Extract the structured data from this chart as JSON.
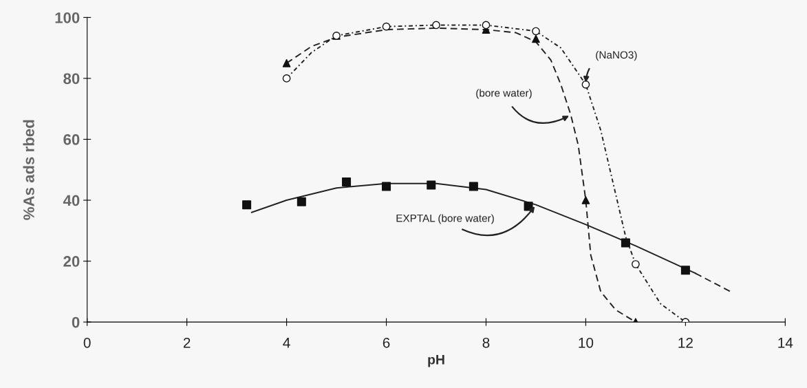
{
  "chart_data": {
    "type": "scatter",
    "xlabel": "pH",
    "ylabel": "%As ads rbed",
    "xlim": [
      0,
      14
    ],
    "ylim": [
      0,
      100
    ],
    "xticks": [
      0,
      2,
      4,
      6,
      8,
      10,
      12,
      14
    ],
    "yticks": [
      0,
      20,
      40,
      60,
      80,
      100
    ],
    "grid": false,
    "legend": false,
    "series": [
      {
        "type": "line",
        "name": "(bore water)",
        "color": "#222222",
        "line_style": "dashed",
        "marker": "none",
        "x": [
          4,
          4.5,
          5,
          6,
          7,
          8,
          8.6,
          9,
          9.3,
          9.5,
          9.7,
          9.85,
          10,
          10.1,
          10.3,
          10.6,
          11
        ],
        "values": [
          85,
          90.5,
          93.5,
          96,
          96.5,
          96,
          95,
          92,
          86,
          78,
          68,
          58,
          40,
          22,
          10,
          4,
          0
        ]
      },
      {
        "type": "line",
        "name": "(NaNO3)",
        "color": "#222222",
        "line_style": "dotted",
        "marker": "none",
        "x": [
          4,
          4.5,
          5,
          6,
          7,
          8,
          9,
          9.5,
          10,
          10.3,
          10.6,
          10.8,
          11,
          11.5,
          12
        ],
        "values": [
          80,
          88.5,
          94,
          97,
          97.5,
          97.5,
          95.5,
          90,
          78,
          63,
          42,
          28,
          19,
          6,
          0
        ]
      },
      {
        "type": "line",
        "name": "EXPTAL (bore water)",
        "color": "#222222",
        "line_style": "solid",
        "marker": "none",
        "x": [
          3.3,
          4,
          5,
          6,
          7,
          8,
          9,
          10,
          11,
          12,
          12.2
        ],
        "values": [
          36,
          40,
          44,
          45.5,
          45.5,
          43.5,
          38.5,
          32,
          25,
          17.5,
          16
        ]
      },
      {
        "type": "line",
        "color": "#222222",
        "line_style": "dashed",
        "marker": "none",
        "x": [
          12.2,
          12.9
        ],
        "values": [
          16,
          10
        ]
      },
      {
        "color": "#111111",
        "marker": "triangle",
        "x": [
          4,
          5,
          6,
          7,
          8,
          9,
          10,
          11
        ],
        "values": [
          85,
          94,
          null,
          null,
          96,
          93,
          40,
          0
        ]
      },
      {
        "color": "#111111",
        "marker": "circle",
        "x": [
          4,
          5,
          6,
          7,
          8,
          9,
          10,
          11,
          12
        ],
        "values": [
          80,
          94,
          97,
          97.5,
          97.5,
          95.5,
          78,
          19,
          0
        ]
      },
      {
        "color": "#111111",
        "marker": "square",
        "x": [
          3.2,
          4.3,
          5.2,
          6,
          6.9,
          7.75,
          8.85,
          10.8,
          12
        ],
        "values": [
          38.5,
          39.5,
          46,
          44.5,
          45,
          44.5,
          38,
          26,
          17
        ]
      }
    ]
  }
}
